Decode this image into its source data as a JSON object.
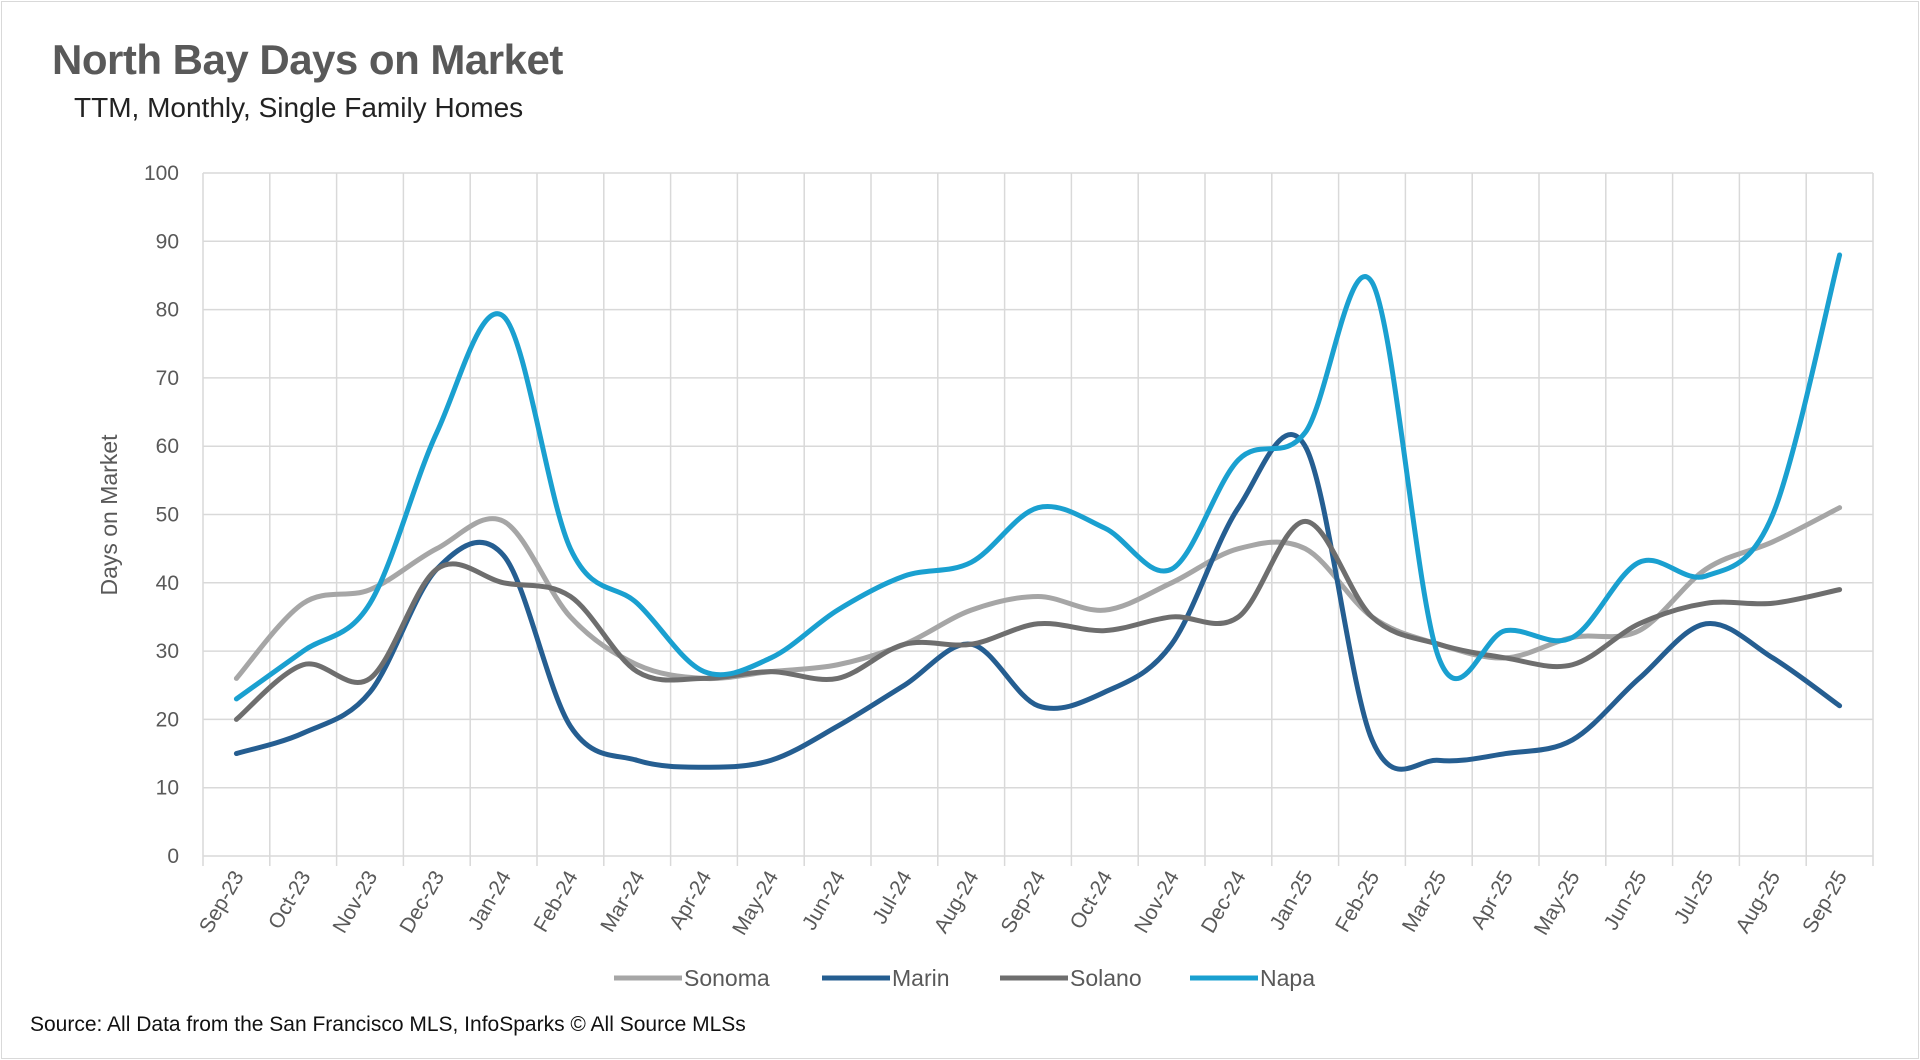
{
  "chart_data": {
    "type": "line",
    "title": "North Bay Days on Market",
    "subtitle": "TTM, Monthly, Single Family Homes",
    "xlabel": "",
    "ylabel": "Days on Market",
    "ylim": [
      0,
      100
    ],
    "yticks": [
      0,
      10,
      20,
      30,
      40,
      50,
      60,
      70,
      80,
      90,
      100
    ],
    "grid": true,
    "legend": "bottom",
    "smooth": true,
    "categories": [
      "Sep-23",
      "Oct-23",
      "Nov-23",
      "Dec-23",
      "Jan-24",
      "Feb-24",
      "Mar-24",
      "Apr-24",
      "May-24",
      "Jun-24",
      "Jul-24",
      "Aug-24",
      "Sep-24",
      "Oct-24",
      "Nov-24",
      "Dec-24",
      "Jan-25",
      "Feb-25",
      "Mar-25",
      "Apr-25",
      "May-25",
      "Jun-25",
      "Jul-25",
      "Aug-25",
      "Sep-25"
    ],
    "series": [
      {
        "name": "Sonoma",
        "color": "#a6a6a6",
        "values": [
          26,
          37,
          39,
          45,
          49,
          35,
          28,
          26,
          27,
          28,
          31,
          36,
          38,
          36,
          40,
          45,
          45,
          35,
          31,
          29,
          32,
          33,
          42,
          46,
          51
        ]
      },
      {
        "name": "Marin",
        "color": "#255e91",
        "values": [
          15,
          18,
          24,
          42,
          44,
          19,
          14,
          13,
          14,
          19,
          25,
          31,
          22,
          24,
          31,
          51,
          60,
          17,
          14,
          15,
          17,
          26,
          34,
          29,
          22
        ]
      },
      {
        "name": "Solano",
        "color": "#6e6e6e",
        "values": [
          20,
          28,
          26,
          42,
          40,
          38,
          27,
          26,
          27,
          26,
          31,
          31,
          34,
          33,
          35,
          35,
          49,
          35,
          31,
          29,
          28,
          34,
          37,
          37,
          39
        ]
      },
      {
        "name": "Napa",
        "color": "#1aa0d0",
        "values": [
          23,
          30,
          37,
          62,
          79,
          45,
          37,
          27,
          29,
          36,
          41,
          43,
          51,
          48,
          42,
          58,
          62,
          84,
          29,
          33,
          32,
          43,
          41,
          50,
          88
        ]
      }
    ],
    "source": "Source: All Data from the San Francisco MLS, InfoSparks © All Source MLSs"
  }
}
